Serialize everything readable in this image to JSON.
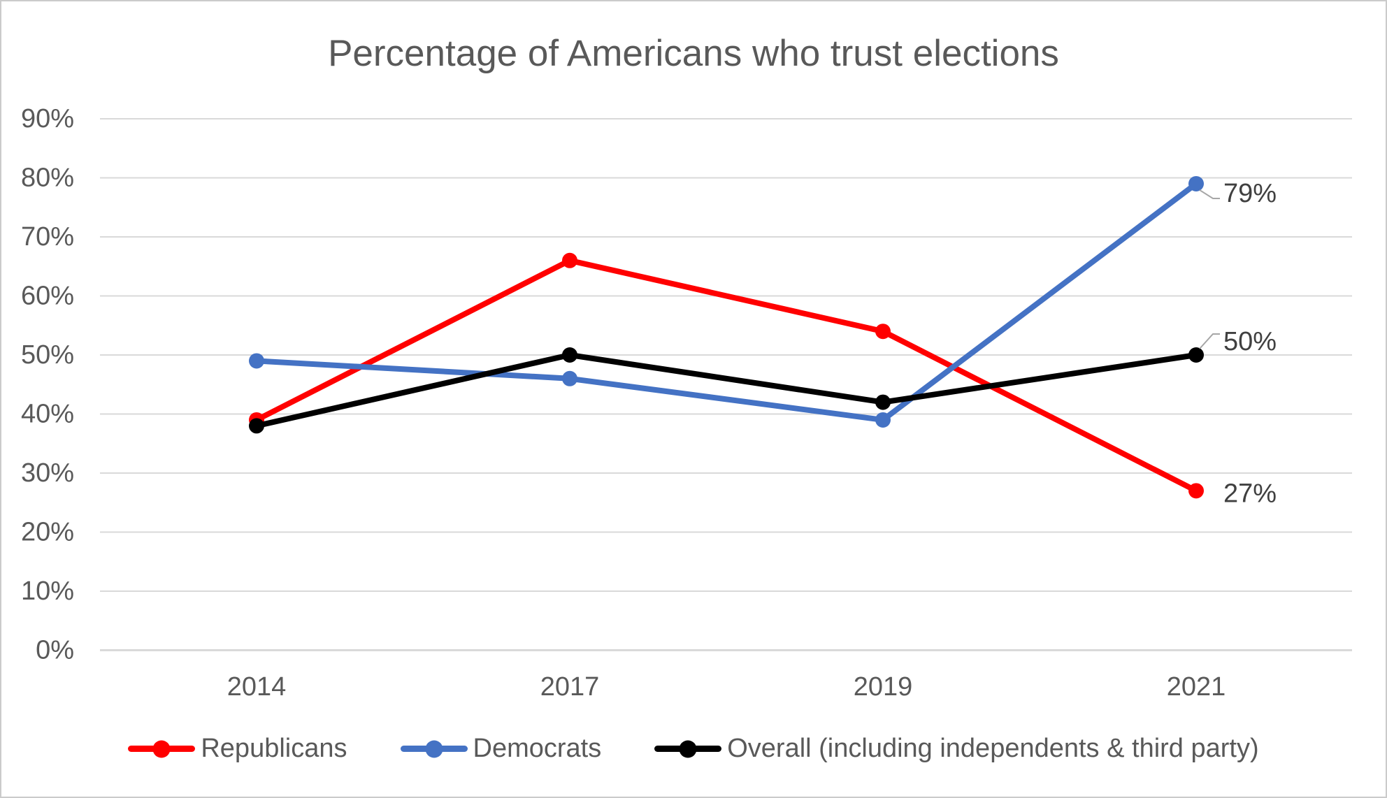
{
  "chart_data": {
    "type": "line",
    "title": "Percentage of Americans who trust elections",
    "categories": [
      "2014",
      "2017",
      "2019",
      "2021"
    ],
    "series": [
      {
        "name": "Republicans",
        "color": "#FF0000",
        "values": [
          39,
          66,
          54,
          27
        ]
      },
      {
        "name": "Democrats",
        "color": "#4472C4",
        "values": [
          49,
          46,
          39,
          79
        ]
      },
      {
        "name": "Overall (including independents & third party)",
        "color": "#000000",
        "values": [
          38,
          50,
          42,
          50
        ]
      }
    ],
    "end_labels": [
      {
        "series": "Democrats",
        "text": "79%"
      },
      {
        "series": "Overall (including independents & third party)",
        "text": "50%"
      },
      {
        "series": "Republicans",
        "text": "27%"
      }
    ],
    "y_axis": {
      "ticks": [
        "0%",
        "10%",
        "20%",
        "30%",
        "40%",
        "50%",
        "60%",
        "70%",
        "80%",
        "90%"
      ],
      "min": 0,
      "max": 90
    },
    "xlabel": "",
    "ylabel": "",
    "grid": true,
    "legend_position": "bottom",
    "colors": {
      "axis_text": "#595959",
      "data_label_text": "#404040",
      "gridline": "#D9D9D9",
      "leader_line": "#A6A6A6",
      "background": "#FFFFFF"
    }
  }
}
